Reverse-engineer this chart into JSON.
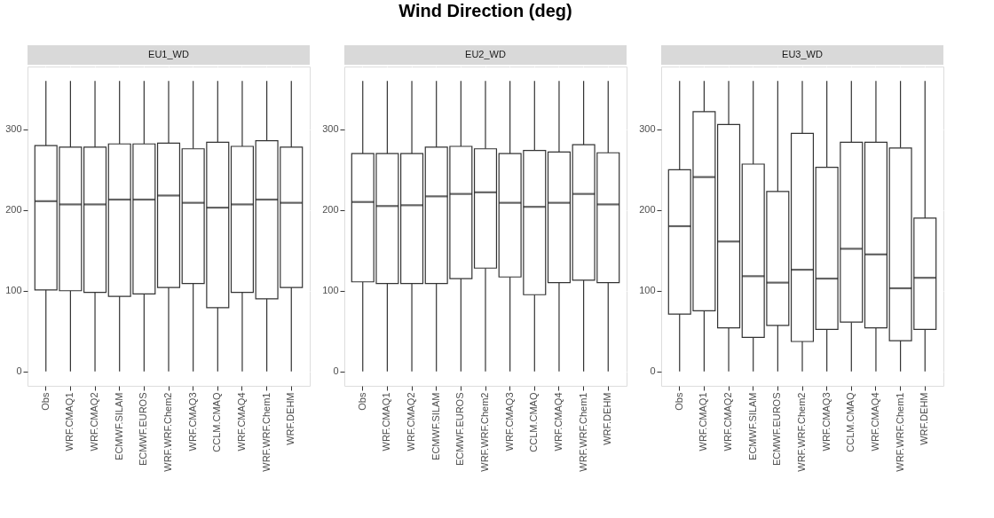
{
  "chart_data": [
    {
      "type": "box",
      "subtitle": "EU1_WD",
      "categories": [
        "Obs",
        "WRF.CMAQ1",
        "WRF.CMAQ2",
        "ECMWF.SILAM",
        "ECMWF.EUROS",
        "WRF.WRF.Chem2",
        "WRF.CMAQ3",
        "CCLM.CMAQ",
        "WRF.CMAQ4",
        "WRF.WRF.Chem1",
        "WRF.DEHM"
      ],
      "ylim": [
        -18,
        378
      ],
      "yticks": [
        0,
        100,
        200,
        300
      ],
      "grid": true,
      "boxes": [
        {
          "low": 0,
          "q1": 101,
          "median": 211,
          "q3": 280,
          "high": 360
        },
        {
          "low": 0,
          "q1": 100,
          "median": 207,
          "q3": 278,
          "high": 360
        },
        {
          "low": 0,
          "q1": 98,
          "median": 207,
          "q3": 278,
          "high": 360
        },
        {
          "low": 0,
          "q1": 93,
          "median": 213,
          "q3": 282,
          "high": 360
        },
        {
          "low": 0,
          "q1": 96,
          "median": 213,
          "q3": 282,
          "high": 360
        },
        {
          "low": 0,
          "q1": 104,
          "median": 218,
          "q3": 283,
          "high": 360
        },
        {
          "low": 0,
          "q1": 109,
          "median": 209,
          "q3": 276,
          "high": 360
        },
        {
          "low": 0,
          "q1": 79,
          "median": 203,
          "q3": 284,
          "high": 360
        },
        {
          "low": 0,
          "q1": 98,
          "median": 207,
          "q3": 279,
          "high": 360
        },
        {
          "low": 0,
          "q1": 90,
          "median": 213,
          "q3": 286,
          "high": 360
        },
        {
          "low": 0,
          "q1": 104,
          "median": 209,
          "q3": 278,
          "high": 360
        }
      ]
    },
    {
      "type": "box",
      "title": "Wind Direction (deg)",
      "subtitle": "EU2_WD",
      "categories": [
        "Obs",
        "WRF.CMAQ1",
        "WRF.CMAQ2",
        "ECMWF.SILAM",
        "ECMWF.EUROS",
        "WRF.WRF.Chem2",
        "WRF.CMAQ3",
        "CCLM.CMAQ",
        "WRF.CMAQ4",
        "WRF.WRF.Chem1",
        "WRF.DEHM"
      ],
      "ylim": [
        -18,
        378
      ],
      "yticks": [
        0,
        100,
        200,
        300
      ],
      "grid": true,
      "boxes": [
        {
          "low": 0,
          "q1": 111,
          "median": 210,
          "q3": 270,
          "high": 360
        },
        {
          "low": 0,
          "q1": 109,
          "median": 205,
          "q3": 270,
          "high": 360
        },
        {
          "low": 0,
          "q1": 109,
          "median": 206,
          "q3": 270,
          "high": 360
        },
        {
          "low": 0,
          "q1": 109,
          "median": 217,
          "q3": 278,
          "high": 360
        },
        {
          "low": 0,
          "q1": 115,
          "median": 220,
          "q3": 279,
          "high": 360
        },
        {
          "low": 0,
          "q1": 128,
          "median": 222,
          "q3": 276,
          "high": 360
        },
        {
          "low": 0,
          "q1": 117,
          "median": 209,
          "q3": 270,
          "high": 360
        },
        {
          "low": 0,
          "q1": 95,
          "median": 204,
          "q3": 274,
          "high": 360
        },
        {
          "low": 0,
          "q1": 110,
          "median": 209,
          "q3": 272,
          "high": 360
        },
        {
          "low": 0,
          "q1": 113,
          "median": 220,
          "q3": 281,
          "high": 360
        },
        {
          "low": 0,
          "q1": 110,
          "median": 207,
          "q3": 271,
          "high": 360
        }
      ]
    },
    {
      "type": "box",
      "subtitle": "EU3_WD",
      "categories": [
        "Obs",
        "WRF.CMAQ1",
        "WRF.CMAQ2",
        "ECMWF.SILAM",
        "ECMWF.EUROS",
        "WRF.WRF.Chem2",
        "WRF.CMAQ3",
        "CCLM.CMAQ",
        "WRF.CMAQ4",
        "WRF.WRF.Chem1",
        "WRF.DEHM"
      ],
      "ylim": [
        -18,
        378
      ],
      "yticks": [
        0,
        100,
        200,
        300
      ],
      "grid": true,
      "boxes": [
        {
          "low": 0,
          "q1": 71,
          "median": 180,
          "q3": 250,
          "high": 360
        },
        {
          "low": 0,
          "q1": 75,
          "median": 241,
          "q3": 322,
          "high": 360
        },
        {
          "low": 0,
          "q1": 54,
          "median": 161,
          "q3": 306,
          "high": 360
        },
        {
          "low": 0,
          "q1": 42,
          "median": 118,
          "q3": 257,
          "high": 360
        },
        {
          "low": 0,
          "q1": 57,
          "median": 110,
          "q3": 223,
          "high": 360
        },
        {
          "low": 0,
          "q1": 37,
          "median": 126,
          "q3": 295,
          "high": 360
        },
        {
          "low": 0,
          "q1": 52,
          "median": 115,
          "q3": 253,
          "high": 360
        },
        {
          "low": 0,
          "q1": 61,
          "median": 152,
          "q3": 284,
          "high": 360
        },
        {
          "low": 0,
          "q1": 54,
          "median": 145,
          "q3": 284,
          "high": 360
        },
        {
          "low": 0,
          "q1": 38,
          "median": 103,
          "q3": 277,
          "high": 360
        },
        {
          "low": 0,
          "q1": 52,
          "median": 116,
          "q3": 190,
          "high": 360
        }
      ]
    }
  ]
}
